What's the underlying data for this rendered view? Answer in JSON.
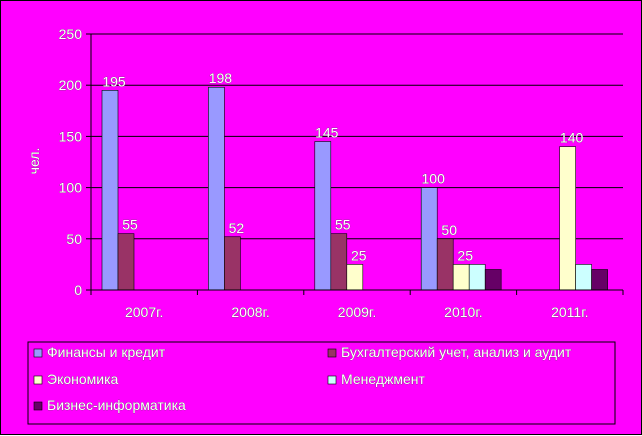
{
  "colors": {
    "background": "#ff00ff",
    "gridline": "#000000",
    "label_text": "#ffffff",
    "series": [
      "#9999ff",
      "#993366",
      "#ffffcc",
      "#ccffff",
      "#660066"
    ]
  },
  "chart_data": {
    "type": "bar",
    "title": "",
    "xlabel": "",
    "ylabel": "чел.",
    "ylim": [
      0,
      250
    ],
    "yticks": [
      0,
      50,
      100,
      150,
      200,
      250
    ],
    "grid": true,
    "legend_position": "bottom",
    "categories": [
      "2007г.",
      "2008г.",
      "2009г.",
      "2010г.",
      "2011г."
    ],
    "series": [
      {
        "name": "Финансы и кредит",
        "values": [
          195,
          198,
          145,
          100,
          null
        ],
        "labels": [
          "195",
          "198",
          "145",
          "100",
          ""
        ]
      },
      {
        "name": "Бухгалтерский учет, анализ и аудит",
        "values": [
          55,
          52,
          55,
          50,
          null
        ],
        "labels": [
          "55",
          "52",
          "55",
          "50",
          ""
        ]
      },
      {
        "name": "Экономика",
        "values": [
          null,
          null,
          25,
          25,
          140
        ],
        "labels": [
          "",
          "",
          "25",
          "25",
          "140"
        ]
      },
      {
        "name": "Менеджмент",
        "values": [
          null,
          null,
          null,
          25,
          25
        ],
        "labels": [
          "",
          "",
          "",
          "",
          ""
        ]
      },
      {
        "name": "Бизнес-информатика",
        "values": [
          null,
          null,
          null,
          20,
          20
        ],
        "labels": [
          "",
          "",
          "",
          "",
          ""
        ]
      }
    ]
  }
}
